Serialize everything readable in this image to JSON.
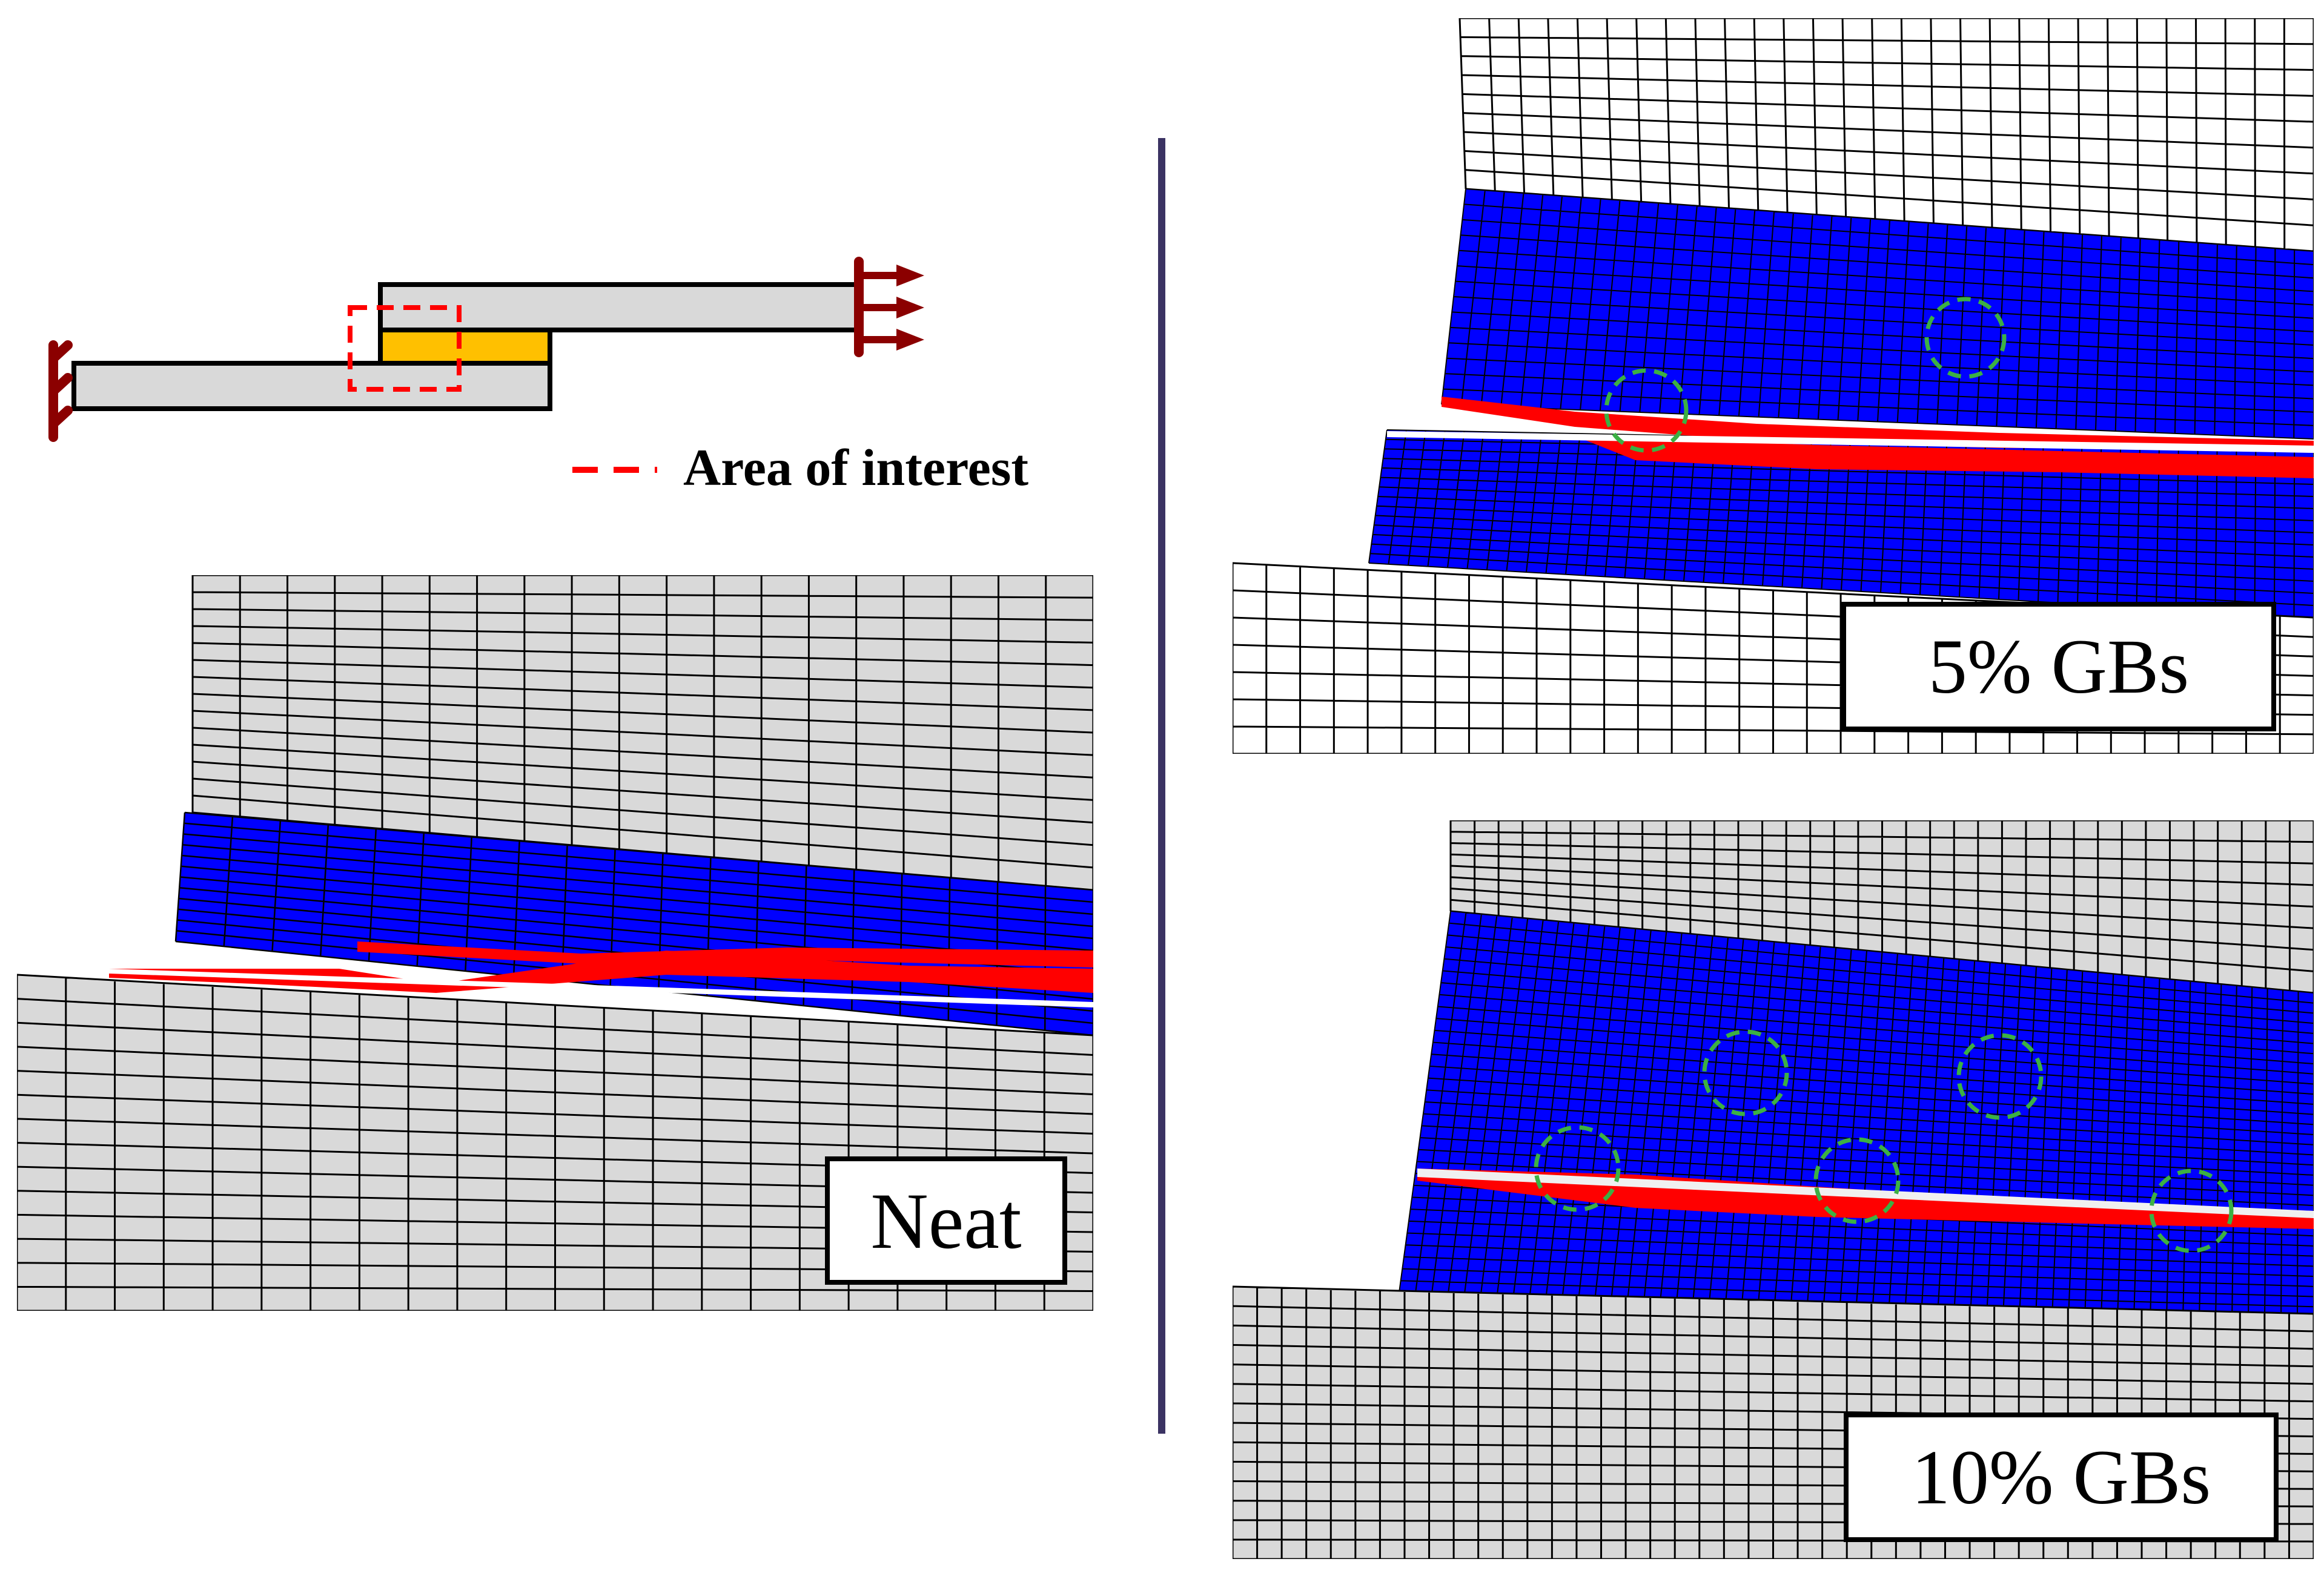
{
  "schematic": {
    "legend_label": "Area of interest"
  },
  "panels": {
    "neat": {
      "label": "Neat"
    },
    "gb5": {
      "label": "5% GBs"
    },
    "gb10": {
      "label": "10% GBs"
    }
  },
  "colors": {
    "adherend": "#d9d9d9",
    "mesh_line": "#000000",
    "adhesive": "#0000ff",
    "damage": "#ff0000",
    "adhesive_schematic": "#ffc000",
    "boundary": "#8b0000",
    "gb_circle": "#3cb043",
    "divider": "#3b3363",
    "area_of_interest": "#ff0000"
  },
  "icons": [
    "fixed-support-icon",
    "load-arrow-icon",
    "gb-particle-circle-icon"
  ]
}
